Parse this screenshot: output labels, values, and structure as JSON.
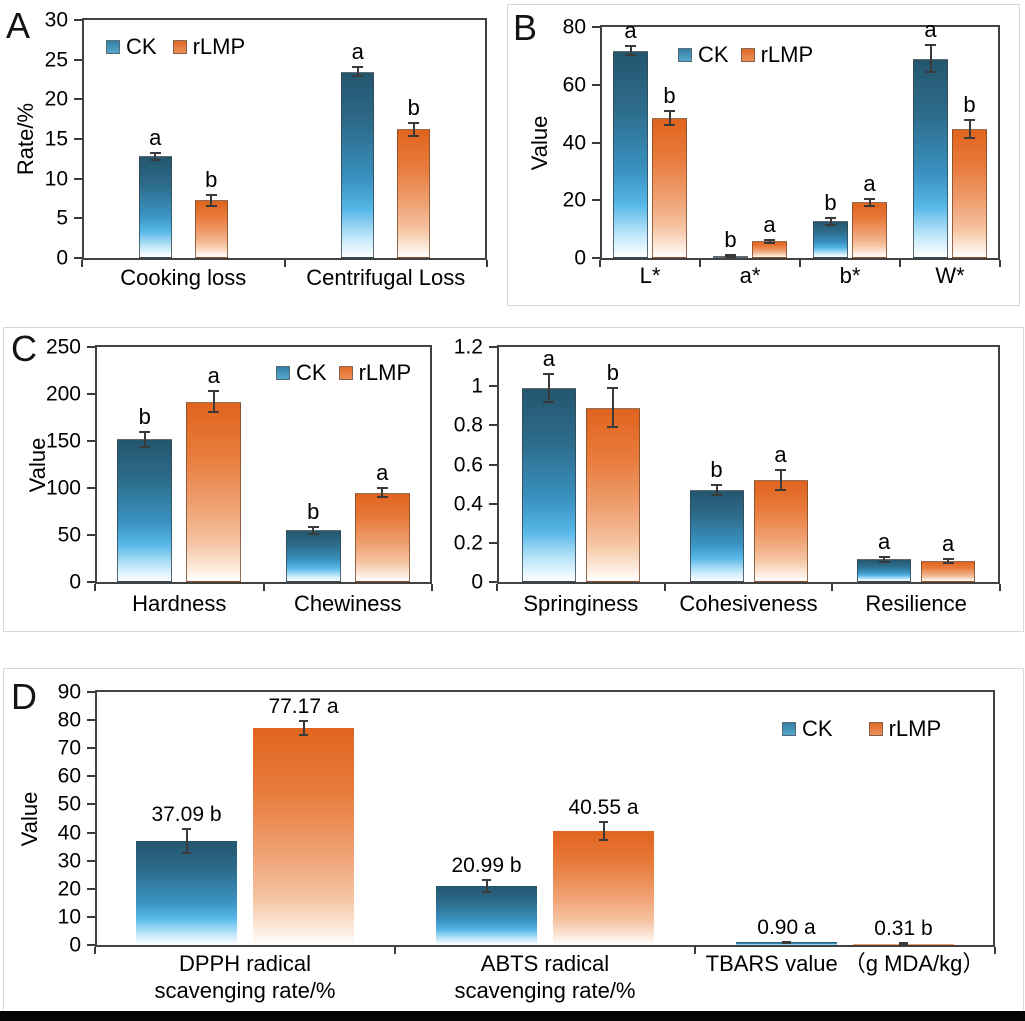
{
  "colors": {
    "ck_accent": "#3a86ad",
    "rlmp_accent": "#e87a3a",
    "axis": "#424242",
    "panel_border": "#d8d8d8"
  },
  "chart_data": [
    {
      "id": "panel-a",
      "type": "bar",
      "panel_letter": "A",
      "ylabel": "Rate/%",
      "ylim": [
        0,
        30
      ],
      "yticks": [
        0,
        5,
        10,
        15,
        20,
        25,
        30
      ],
      "categories": [
        "Cooking loss",
        "Centrifugal Loss"
      ],
      "legend_entries": [
        "CK",
        "rLMP"
      ],
      "series": [
        {
          "name": "CK",
          "values": [
            12.8,
            23.5
          ],
          "errors": [
            0.4,
            0.6
          ],
          "letters": [
            "a",
            "a"
          ]
        },
        {
          "name": "rLMP",
          "values": [
            7.3,
            16.2
          ],
          "errors": [
            0.7,
            0.8
          ],
          "letters": [
            "b",
            "b"
          ]
        }
      ]
    },
    {
      "id": "panel-b",
      "type": "bar",
      "panel_letter": "B",
      "ylabel": "Value",
      "ylim": [
        0,
        80
      ],
      "yticks": [
        0,
        20,
        40,
        60,
        80
      ],
      "categories": [
        "L*",
        "a*",
        "b*",
        "W*"
      ],
      "legend_entries": [
        "CK",
        "rLMP"
      ],
      "series": [
        {
          "name": "CK",
          "values": [
            71.8,
            0.8,
            12.7,
            69.0
          ],
          "errors": [
            1.5,
            0.3,
            1.2,
            4.7
          ],
          "letters": [
            "a",
            "b",
            "b",
            "a"
          ]
        },
        {
          "name": "rLMP",
          "values": [
            48.4,
            5.8,
            19.3,
            44.6
          ],
          "errors": [
            2.5,
            0.6,
            1.2,
            3.2
          ],
          "letters": [
            "b",
            "a",
            "a",
            "b"
          ]
        }
      ]
    },
    {
      "id": "panel-c-left",
      "type": "bar",
      "panel_letter": "C",
      "ylabel": "Value",
      "ylim": [
        0,
        250
      ],
      "yticks": [
        0,
        50,
        100,
        150,
        200,
        250
      ],
      "categories": [
        "Hardness",
        "Chewiness"
      ],
      "legend_entries": [
        "CK",
        "rLMP"
      ],
      "series": [
        {
          "name": "CK",
          "values": [
            152,
            55
          ],
          "errors": [
            8,
            3.5
          ],
          "letters": [
            "b",
            "b"
          ]
        },
        {
          "name": "rLMP",
          "values": [
            192,
            95
          ],
          "errors": [
            11,
            5
          ],
          "letters": [
            "a",
            "a"
          ]
        }
      ]
    },
    {
      "id": "panel-c-right",
      "type": "bar",
      "panel_letter": "",
      "ylabel": "",
      "ylim": [
        0,
        1.2
      ],
      "yticks": [
        0,
        0.2,
        0.4,
        0.6,
        0.8,
        1,
        1.2
      ],
      "categories": [
        "Springiness",
        "Cohesiveness",
        "Resilience"
      ],
      "legend_entries": [],
      "series": [
        {
          "name": "CK",
          "values": [
            0.99,
            0.47,
            0.115
          ],
          "errors": [
            0.07,
            0.025,
            0.012
          ],
          "letters": [
            "a",
            "b",
            "a"
          ]
        },
        {
          "name": "rLMP",
          "values": [
            0.89,
            0.52,
            0.105
          ],
          "errors": [
            0.1,
            0.05,
            0.01
          ],
          "letters": [
            "b",
            "a",
            "a"
          ]
        }
      ]
    },
    {
      "id": "panel-d",
      "type": "bar",
      "panel_letter": "D",
      "ylabel": "Value",
      "ylim": [
        0,
        90
      ],
      "yticks": [
        0,
        10,
        20,
        30,
        40,
        50,
        60,
        70,
        80,
        90
      ],
      "categories": [
        "DPPH radical\nscavenging rate/%",
        "ABTS radical\nscavenging rate/%",
        "TBARS value （g MDA/kg）"
      ],
      "legend_entries": [
        "CK",
        "rLMP"
      ],
      "series": [
        {
          "name": "CK",
          "values": [
            37.09,
            20.99,
            0.9
          ],
          "errors": [
            4.2,
            2.3,
            0.3
          ],
          "value_labels": [
            "37.09 b",
            "20.99 b",
            "0.90 a"
          ]
        },
        {
          "name": "rLMP",
          "values": [
            77.17,
            40.55,
            0.31
          ],
          "errors": [
            2.6,
            3.2,
            0.2
          ],
          "value_labels": [
            "77.17 a",
            "40.55 a",
            "0.31 b"
          ]
        }
      ]
    }
  ]
}
